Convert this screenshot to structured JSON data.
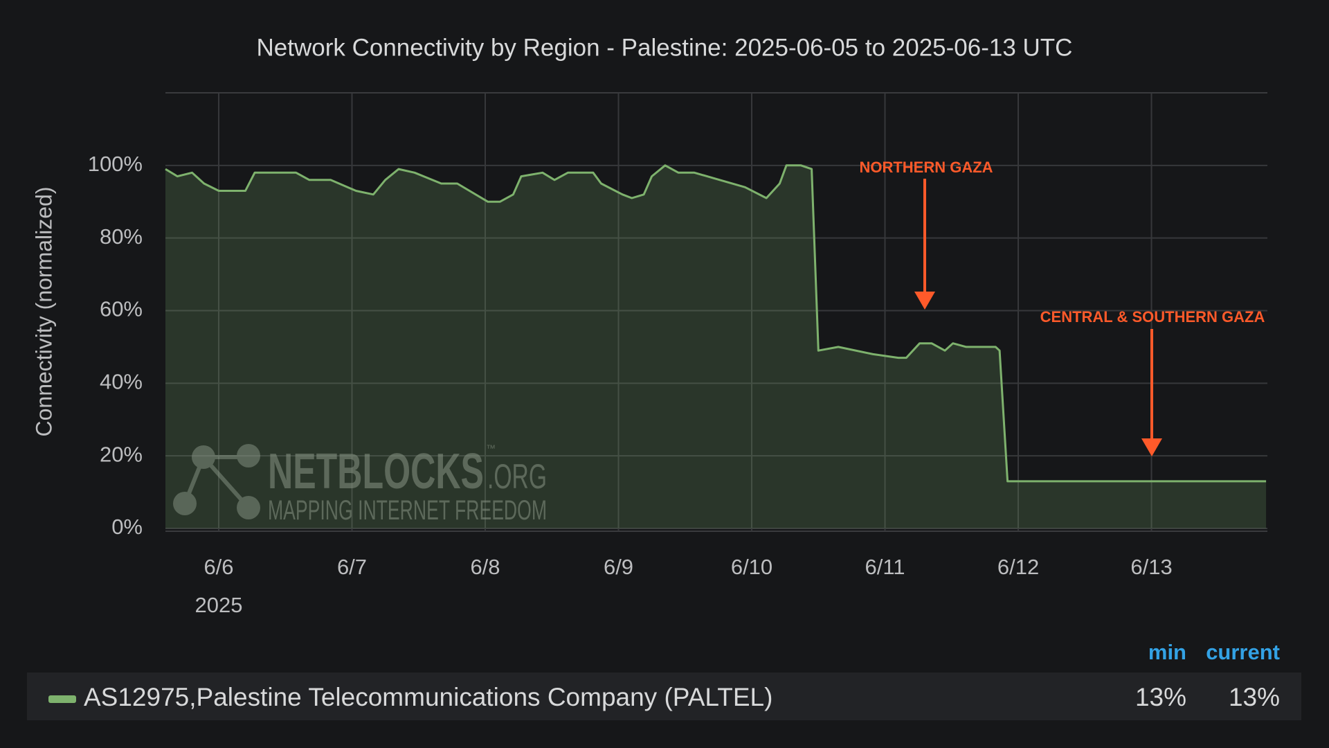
{
  "chart_data": {
    "type": "line",
    "title": "Network Connectivity by Region - Palestine: 2025-06-05 to 2025-06-13 UTC",
    "y_label": "Connectivity (normalized)",
    "x_sublabel": "2025",
    "x": [
      5.6,
      5.69,
      5.8,
      5.89,
      6.0,
      6.2,
      6.27,
      6.39,
      6.58,
      6.68,
      6.84,
      7.03,
      7.16,
      7.25,
      7.35,
      7.47,
      7.67,
      7.79,
      8.02,
      8.11,
      8.21,
      8.27,
      8.43,
      8.52,
      8.62,
      8.81,
      8.87,
      9.03,
      9.1,
      9.19,
      9.25,
      9.35,
      9.45,
      9.57,
      9.76,
      9.95,
      10.11,
      10.21,
      10.26,
      10.37,
      10.45,
      10.5,
      10.65,
      10.91,
      11.1,
      11.16,
      11.26,
      11.35,
      11.45,
      11.51,
      11.61,
      11.83,
      11.86,
      11.92,
      13.86
    ],
    "series": [
      {
        "name": "AS12975,Palestine Telecommunications Company (PALTEL)",
        "color": "#7eb26d",
        "values": [
          99,
          97,
          98,
          95,
          93,
          93,
          98,
          98,
          98,
          96,
          96,
          93,
          92,
          96,
          99,
          98,
          95,
          95,
          90,
          90,
          92,
          97,
          98,
          96,
          98,
          98,
          95,
          92,
          91,
          92,
          97,
          100,
          98,
          98,
          96,
          94,
          91,
          95,
          100,
          100,
          99,
          49,
          50,
          48,
          47,
          47,
          51,
          51,
          49,
          51,
          50,
          50,
          49,
          13,
          13
        ],
        "stats": [
          {
            "value": 13,
            "label": "13%"
          },
          {
            "value": 13,
            "label": "13%"
          }
        ]
      }
    ],
    "legend_columns": [
      "min",
      "current"
    ],
    "xlim": [
      5.6,
      13.87
    ],
    "xticks": [
      {
        "value": 6,
        "label": "6/6"
      },
      {
        "value": 7,
        "label": "6/7"
      },
      {
        "value": 8,
        "label": "6/8"
      },
      {
        "value": 9,
        "label": "6/9"
      },
      {
        "value": 10,
        "label": "6/10"
      },
      {
        "value": 11,
        "label": "6/11"
      },
      {
        "value": 12,
        "label": "6/12"
      },
      {
        "value": 13,
        "label": "6/13"
      }
    ],
    "ylim": [
      0,
      120
    ],
    "yticks": [
      {
        "value": 0,
        "label": "0%"
      },
      {
        "value": 20,
        "label": "20%"
      },
      {
        "value": 40,
        "label": "40%"
      },
      {
        "value": 60,
        "label": "60%"
      },
      {
        "value": 80,
        "label": "80%"
      },
      {
        "value": 100,
        "label": "100%"
      }
    ],
    "grid": true,
    "annotations": [
      "NORTHERN GAZA",
      "CENTRAL & SOUTHERN GAZA"
    ],
    "watermark": {
      "name": "NETBLOCKS",
      "tm": "™",
      "suffix": ".ORG",
      "tagline": "MAPPING INTERNET FREEDOM"
    }
  }
}
